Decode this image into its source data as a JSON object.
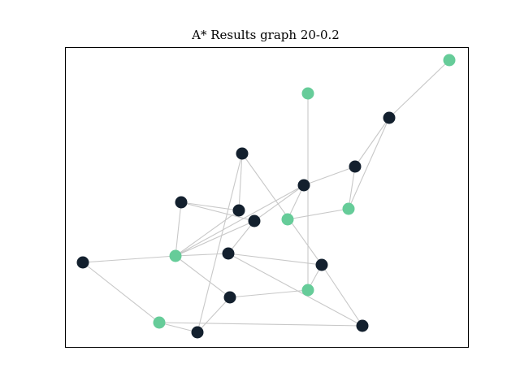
{
  "title": "A* Results graph 20-0.2",
  "colors": {
    "path_node": "#66cc99",
    "other_node": "#13202e",
    "edge": "#c8c8c8",
    "frame": "#000000"
  },
  "graph": {
    "nodes": [
      {
        "id": "n0",
        "role": "path"
      },
      {
        "id": "n1",
        "role": "path"
      },
      {
        "id": "n2",
        "role": "other"
      },
      {
        "id": "n3",
        "role": "other"
      },
      {
        "id": "n4",
        "role": "other"
      },
      {
        "id": "n5",
        "role": "other"
      },
      {
        "id": "n6",
        "role": "path"
      },
      {
        "id": "n7",
        "role": "other"
      },
      {
        "id": "n8",
        "role": "other"
      },
      {
        "id": "n9",
        "role": "other"
      },
      {
        "id": "n10",
        "role": "path"
      },
      {
        "id": "n11",
        "role": "other"
      },
      {
        "id": "n12",
        "role": "path"
      },
      {
        "id": "n13",
        "role": "other"
      },
      {
        "id": "n14",
        "role": "other"
      },
      {
        "id": "n15",
        "role": "other"
      },
      {
        "id": "n16",
        "role": "path"
      },
      {
        "id": "n17",
        "role": "other"
      },
      {
        "id": "n18",
        "role": "path"
      },
      {
        "id": "n19",
        "role": "other"
      }
    ],
    "edges": [
      [
        "n0",
        "n2"
      ],
      [
        "n2",
        "n4"
      ],
      [
        "n2",
        "n6"
      ],
      [
        "n4",
        "n5"
      ],
      [
        "n4",
        "n6"
      ],
      [
        "n1",
        "n16"
      ],
      [
        "n3",
        "n13"
      ],
      [
        "n3",
        "n8"
      ],
      [
        "n3",
        "n19"
      ],
      [
        "n5",
        "n10"
      ],
      [
        "n5",
        "n12"
      ],
      [
        "n5",
        "n9"
      ],
      [
        "n6",
        "n10"
      ],
      [
        "n7",
        "n12"
      ],
      [
        "n7",
        "n8"
      ],
      [
        "n7",
        "n9"
      ],
      [
        "n12",
        "n8"
      ],
      [
        "n12",
        "n9"
      ],
      [
        "n12",
        "n17"
      ],
      [
        "n12",
        "n15"
      ],
      [
        "n9",
        "n11"
      ],
      [
        "n11",
        "n12"
      ],
      [
        "n11",
        "n13"
      ],
      [
        "n11",
        "n14"
      ],
      [
        "n13",
        "n14"
      ],
      [
        "n13",
        "n16"
      ],
      [
        "n14",
        "n18"
      ],
      [
        "n15",
        "n18"
      ],
      [
        "n16",
        "n17"
      ],
      [
        "n17",
        "n19"
      ],
      [
        "n18",
        "n19"
      ]
    ]
  }
}
